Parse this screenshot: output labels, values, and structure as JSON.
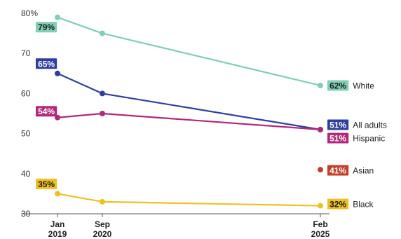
{
  "chart_data": {
    "type": "line",
    "x": [
      "Jan 2019",
      "Sep 2020",
      "Feb 2025"
    ],
    "x_ticks": [
      {
        "line1": "Jan",
        "line2": "2019"
      },
      {
        "line1": "Sep",
        "line2": "2020"
      },
      {
        "line1": "Feb",
        "line2": "2025"
      }
    ],
    "y_ticks": [
      "80%",
      "70",
      "60",
      "50",
      "40",
      "30"
    ],
    "y_tick_values": [
      80,
      70,
      60,
      50,
      40,
      30
    ],
    "ylim": [
      30,
      80
    ],
    "grid": false,
    "series": [
      {
        "name": "White",
        "values": [
          79,
          75,
          62
        ],
        "color": "#7fcfb4",
        "label_color": "#7fcfb4",
        "label_text_color": "#1a1a1a",
        "start_label": "79%",
        "end_label": "62%"
      },
      {
        "name": "All adults",
        "values": [
          65,
          60,
          51
        ],
        "color": "#2e3fa0",
        "label_color": "#2e3fa0",
        "label_text_color": "#ffffff",
        "start_label": "65%",
        "end_label": "51%"
      },
      {
        "name": "Hispanic",
        "values": [
          54,
          55,
          51
        ],
        "color": "#b3287a",
        "label_color": "#b3287a",
        "label_text_color": "#ffffff",
        "start_label": "54%",
        "end_label": "51%"
      },
      {
        "name": "Asian",
        "values": [
          null,
          null,
          41
        ],
        "color": "#c1412a",
        "label_color": "#c1412a",
        "label_text_color": "#ffffff",
        "start_label": "",
        "end_label": "41%"
      },
      {
        "name": "Black",
        "values": [
          35,
          33,
          32
        ],
        "color": "#f0c020",
        "label_color": "#f0c020",
        "label_text_color": "#1a1a1a",
        "start_label": "35%",
        "end_label": "32%"
      }
    ]
  }
}
